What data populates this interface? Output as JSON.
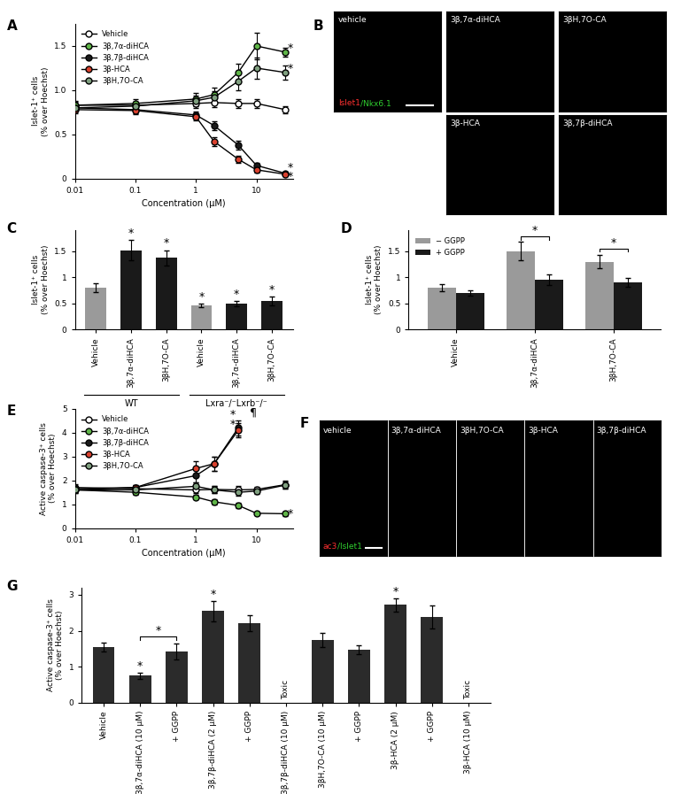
{
  "chart_data": [
    {
      "panel": "A",
      "type": "line",
      "log": "x",
      "xlabel": "Concentration (μM)",
      "ylabel": "Islet-1⁺ cells\n(% over Hoechst)",
      "x": [
        0.01,
        0.1,
        1,
        2,
        5,
        10,
        30
      ],
      "xlim": [
        0.01,
        40
      ],
      "xticks": [
        0.01,
        0.1,
        1,
        10
      ],
      "ylim": [
        0,
        1.75
      ],
      "yticks": [
        0,
        0.5,
        {
          "value": 1,
          "label": "1.0"
        },
        1.5
      ],
      "legend": "upper left",
      "series": [
        {
          "name": "Vehicle",
          "color": "#ffffff",
          "values": [
            0.83,
            0.83,
            0.85,
            0.86,
            0.85,
            0.85,
            0.78
          ],
          "errors": [
            0.04,
            0.04,
            0.05,
            0.05,
            0.05,
            0.05,
            0.04
          ]
        },
        {
          "name": "3β,7α-diHCA",
          "color": "#5fb548",
          "values": [
            0.83,
            0.85,
            0.9,
            0.95,
            1.2,
            1.5,
            1.43
          ],
          "errors": [
            0.05,
            0.05,
            0.07,
            0.08,
            0.1,
            0.15,
            0.05
          ]
        },
        {
          "name": "3β,7β-diHCA",
          "color": "#1a1a1a",
          "values": [
            0.8,
            0.78,
            0.72,
            0.6,
            0.38,
            0.15,
            0.06
          ],
          "errors": [
            0.04,
            0.04,
            0.04,
            0.05,
            0.05,
            0.03,
            0.02
          ]
        },
        {
          "name": "3β-HCA",
          "color": "#d9412e",
          "values": [
            0.78,
            0.77,
            0.7,
            0.42,
            0.22,
            0.1,
            0.05
          ],
          "errors": [
            0.04,
            0.04,
            0.04,
            0.05,
            0.04,
            0.03,
            0.02
          ]
        },
        {
          "name": "3βH,7O-CA",
          "color": "#7f9f7f",
          "values": [
            0.8,
            0.82,
            0.88,
            0.92,
            1.1,
            1.25,
            1.2
          ],
          "errors": [
            0.04,
            0.05,
            0.06,
            0.07,
            0.1,
            0.12,
            0.08
          ]
        }
      ],
      "annotations": [
        {
          "text": "*",
          "x": 36,
          "y": 1.47
        },
        {
          "text": "*",
          "x": 36,
          "y": 1.24
        },
        {
          "text": "*",
          "x": 36,
          "y": 0.12
        },
        {
          "text": "*",
          "x": 36,
          "y": 0.02
        }
      ]
    },
    {
      "panel": "B",
      "type": "image",
      "images": [
        "vehicle",
        "3β,7α-diHCA",
        "3βH,7O-CA",
        "3β-HCA",
        "3β,7β-diHCA"
      ],
      "channels": [
        {
          "name": "Islet1",
          "color": "#ff3030"
        },
        {
          "name": "/Nkx6.1",
          "color": "#30d030"
        }
      ]
    },
    {
      "panel": "C",
      "type": "bar",
      "ylabel": "Islet-1⁺ cells\n(% over Hoechst)",
      "categories": [
        "Vehicle",
        "3β,7α-diHCA",
        "3βH,7O-CA",
        "Vehicle",
        "3β,7α-diHCA",
        "3βH,7O-CA"
      ],
      "values": [
        0.8,
        1.52,
        1.37,
        0.46,
        0.5,
        0.55
      ],
      "errors": [
        0.08,
        0.2,
        0.15,
        0.04,
        0.05,
        0.08
      ],
      "colors": [
        "#9a9a9a",
        "#1a1a1a",
        "#1a1a1a",
        "#9a9a9a",
        "#1a1a1a",
        "#1a1a1a"
      ],
      "significance": [
        null,
        "*",
        "*",
        "*",
        "*",
        "*"
      ],
      "groups": [
        {
          "label": "WT",
          "members": [
            0,
            1,
            2
          ]
        },
        {
          "label": "Lxra⁻/⁻Lxrb⁻/⁻",
          "members": [
            3,
            4,
            5
          ]
        }
      ],
      "ylim": [
        0,
        1.9
      ],
      "yticks": [
        0,
        0.5,
        1,
        1.5
      ]
    },
    {
      "panel": "D",
      "type": "grouped_bar",
      "ylabel": "Islet-1⁺ cells\n(% over Hoechst)",
      "categories": [
        "Vehicle",
        "3β,7α-diHCA",
        "3βH,7O-CA"
      ],
      "series": [
        {
          "name": "− GGPP",
          "color": "#9a9a9a",
          "values": [
            0.8,
            1.5,
            1.3
          ],
          "errors": [
            0.07,
            0.18,
            0.12
          ]
        },
        {
          "name": "+ GGPP",
          "color": "#1a1a1a",
          "values": [
            0.7,
            0.95,
            0.9
          ],
          "errors": [
            0.05,
            0.1,
            0.08
          ]
        }
      ],
      "brackets": [
        {
          "category": 1,
          "y": 1.78,
          "text": "*"
        },
        {
          "category": 2,
          "y": 1.55,
          "text": "*"
        }
      ],
      "legend": "upper left",
      "ylim": [
        0,
        1.9
      ],
      "yticks": [
        0,
        0.5,
        1,
        1.5
      ]
    },
    {
      "panel": "E",
      "type": "line",
      "log": "x",
      "xlabel": "Concentration (μM)",
      "ylabel": "Active caspase-3⁺ cells\n(% over Hoechst)",
      "x": [
        0.01,
        0.1,
        1,
        2,
        5,
        10,
        30
      ],
      "xlim": [
        0.01,
        40
      ],
      "xticks": [
        0.01,
        0.1,
        1,
        10
      ],
      "ylim": [
        0,
        5
      ],
      "yticks": [
        0,
        1,
        2,
        3,
        4,
        5
      ],
      "legend": "upper left",
      "series": [
        {
          "name": "Vehicle",
          "color": "#ffffff",
          "values": [
            1.7,
            1.65,
            1.6,
            1.62,
            1.6,
            1.62,
            1.82
          ],
          "errors": [
            0.15,
            0.12,
            0.12,
            0.15,
            0.15,
            0.12,
            0.15
          ]
        },
        {
          "name": "3β,7α-diHCA",
          "color": "#5fb548",
          "values": [
            1.6,
            1.5,
            1.3,
            1.1,
            0.95,
            0.62,
            0.6
          ],
          "errors": [
            0.12,
            0.1,
            0.1,
            0.1,
            0.1,
            0.08,
            0.08
          ]
        },
        {
          "name": "3β,7β-diHCA",
          "color": "#1a1a1a",
          "values": [
            1.65,
            1.7,
            2.2,
            2.7,
            4.2,
            null,
            null
          ],
          "errors": [
            0.1,
            0.1,
            0.3,
            0.3,
            0.3,
            null,
            null
          ]
        },
        {
          "name": "3β-HCA",
          "color": "#d9412e",
          "values": [
            1.6,
            1.7,
            2.5,
            2.7,
            4.1,
            null,
            null
          ],
          "errors": [
            0.1,
            0.1,
            0.3,
            0.3,
            0.3,
            null,
            null
          ]
        },
        {
          "name": "3βH,7O-CA",
          "color": "#7f9f7f",
          "values": [
            1.6,
            1.6,
            1.75,
            1.6,
            1.5,
            1.55,
            1.8
          ],
          "errors": [
            0.12,
            0.12,
            0.15,
            0.15,
            0.15,
            0.12,
            0.15
          ]
        }
      ],
      "annotations": [
        {
          "text": "*",
          "x": 4.0,
          "y": 4.75
        },
        {
          "text": "*",
          "x": 4.0,
          "y": 4.35
        },
        {
          "text": "¶",
          "x": 9,
          "y": 4.85
        },
        {
          "text": "*",
          "x": 36,
          "y": 0.6
        }
      ]
    },
    {
      "panel": "F",
      "type": "image",
      "images": [
        "vehicle",
        "3β,7α-diHCA",
        "3βH,7O-CA",
        "3β-HCA",
        "3β,7β-diHCA"
      ],
      "channels": [
        {
          "name": "ac3",
          "color": "#ff3030"
        },
        {
          "name": "/Islet1",
          "color": "#30d030"
        }
      ]
    },
    {
      "panel": "G",
      "type": "bar",
      "ylabel": "Active caspase-3⁺ cells\n(% over Hoechst)",
      "categories": [
        "Vehicle",
        "3β,7α-diHCA (10 μM)",
        "+ GGPP",
        "3β,7β-diHCA (2 μM)",
        "+ GGPP",
        "3β,7β-diHCA (10 μM)",
        "3βH,7O-CA (10 μM)",
        "+ GGPP",
        "3β-HCA (2 μM)",
        "+ GGPP",
        "3β-HCA (10 μM)"
      ],
      "values": [
        1.55,
        0.75,
        1.42,
        2.55,
        2.22,
        null,
        1.75,
        1.48,
        2.72,
        2.38,
        null
      ],
      "errors": [
        0.12,
        0.08,
        0.22,
        0.28,
        0.22,
        null,
        0.2,
        0.12,
        0.18,
        0.32,
        null
      ],
      "value_labels": [
        null,
        null,
        null,
        null,
        null,
        "Toxic",
        null,
        null,
        null,
        null,
        "Toxic"
      ],
      "significance": [
        null,
        "*",
        null,
        "*",
        null,
        null,
        null,
        null,
        "*",
        null,
        null
      ],
      "brackets": [
        {
          "from": 1,
          "to": 2,
          "y": 1.85,
          "text": "*"
        }
      ],
      "color": "#2b2b2b",
      "ylim": [
        0,
        3.2
      ],
      "yticks": [
        0,
        1,
        2,
        3
      ]
    }
  ]
}
